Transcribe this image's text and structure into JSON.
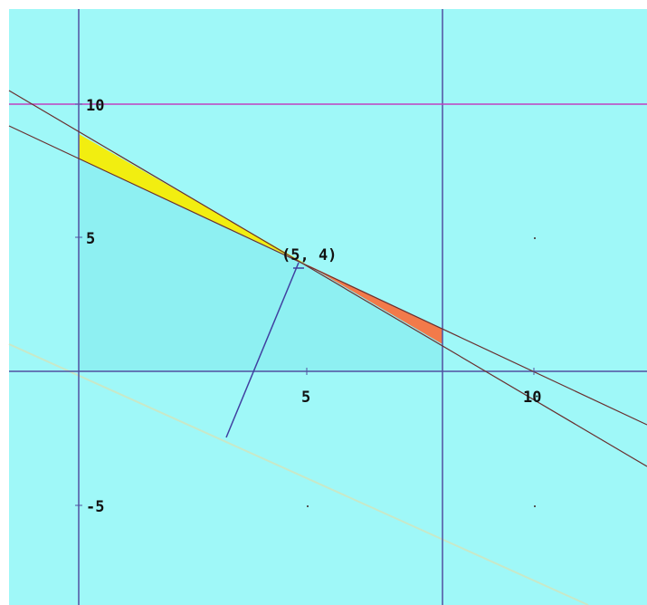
{
  "axes": {
    "y_labels": [
      "10",
      "5",
      "-5"
    ],
    "x_labels": [
      "5",
      "10"
    ]
  },
  "point_label": "(5, 4)"
}
